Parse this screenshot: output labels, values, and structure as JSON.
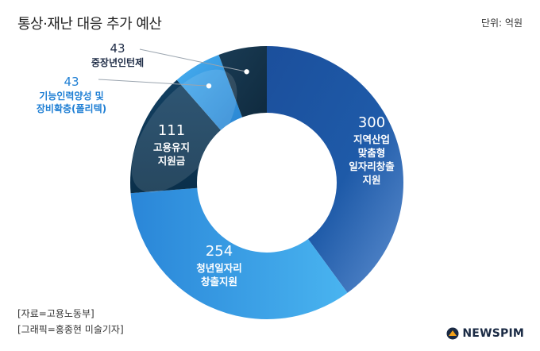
{
  "header": {
    "title": "통상·재난 대응 추가 예산",
    "unit": "단위: 억원"
  },
  "footer": {
    "source": "[자료=고용노동부]",
    "credit": "[그래픽=홍종현 미술기자]",
    "logo": "NEWSPIM"
  },
  "colors": {
    "slice_300": "#1b4f9c",
    "slice_254": "#2e8fe0",
    "slice_111": "#0e3b5b",
    "slice_43_blue": "#3a9ee8",
    "slice_43_dark": "#18384f",
    "outside_label_dark": "#1c2a44",
    "outside_label_blue": "#1f7fd4"
  },
  "chart_data": {
    "type": "pie",
    "donut": true,
    "title": "통상·재난 대응 추가 예산",
    "unit": "단위: 억원",
    "slices": [
      {
        "value": 300,
        "value_label": "300",
        "label_lines": [
          "지역산업",
          "맞춤형",
          "일자리창출",
          "지원"
        ]
      },
      {
        "value": 254,
        "value_label": "254",
        "label_lines": [
          "청년일자리",
          "창출지원"
        ]
      },
      {
        "value": 111,
        "value_label": "111",
        "label_lines": [
          "고용유지",
          "지원금"
        ]
      },
      {
        "value": 43,
        "value_label": "43",
        "label_lines": [
          "기능인력양성 및",
          "장비확충(폴리텍)"
        ]
      },
      {
        "value": 43,
        "value_label": "43",
        "label_lines": [
          "중장년인턴제"
        ]
      }
    ]
  }
}
